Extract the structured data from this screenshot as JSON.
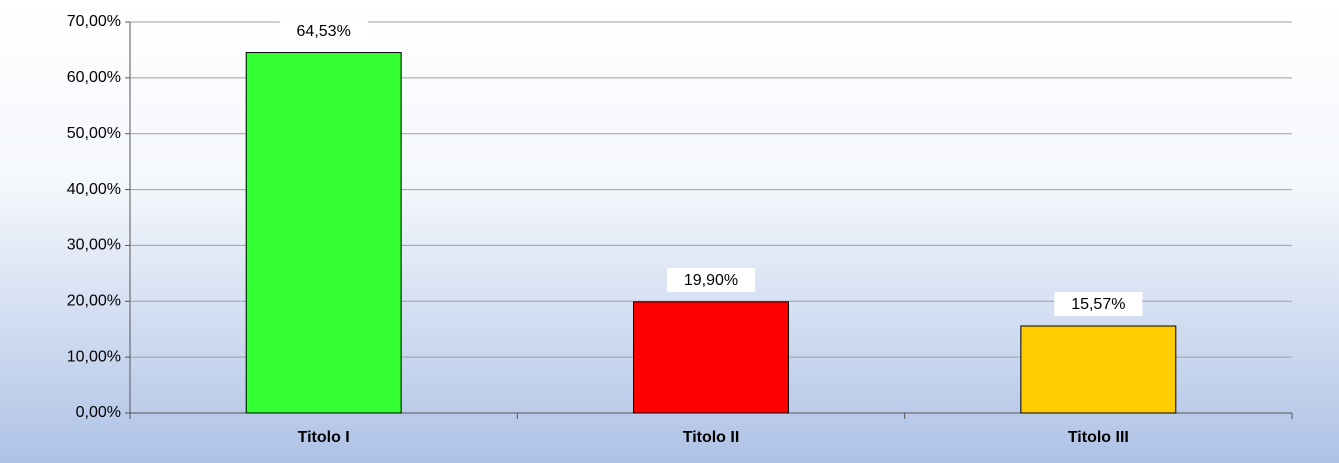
{
  "chart_data": {
    "type": "bar",
    "categories": [
      "Titolo I",
      "Titolo II",
      "Titolo III"
    ],
    "values": [
      64.53,
      19.9,
      15.57
    ],
    "value_labels": [
      "64,53%",
      "19,90%",
      "15,57%"
    ],
    "colors": [
      "#33ff33",
      "#ff0000",
      "#ffcc00"
    ],
    "ylim": [
      0,
      70
    ],
    "yticks": [
      {
        "value": 0,
        "label": "0,00%"
      },
      {
        "value": 10,
        "label": "10,00%"
      },
      {
        "value": 20,
        "label": "20,00%"
      },
      {
        "value": 30,
        "label": "30,00%"
      },
      {
        "value": 40,
        "label": "40,00%"
      },
      {
        "value": 50,
        "label": "50,00%"
      },
      {
        "value": 60,
        "label": "60,00%"
      },
      {
        "value": 70,
        "label": "70,00%"
      }
    ],
    "grid": true
  }
}
